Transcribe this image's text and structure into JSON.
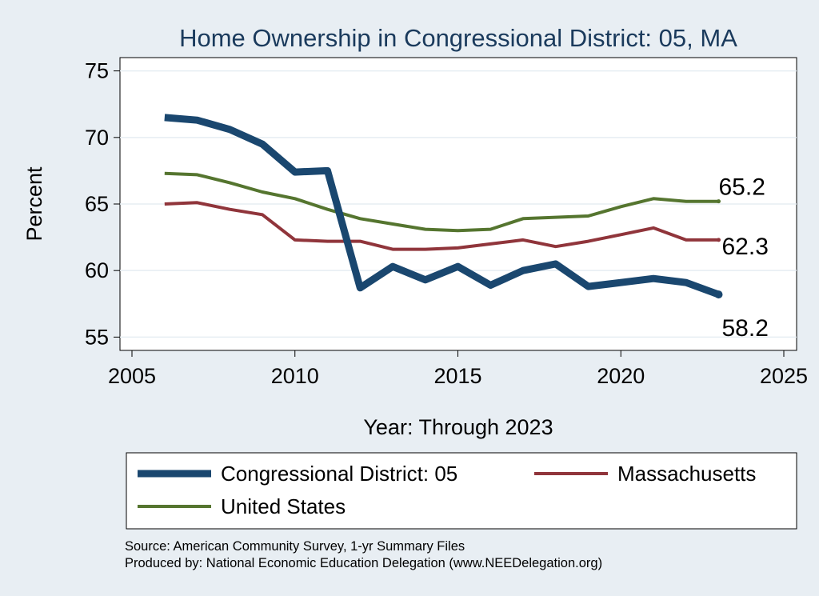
{
  "chart_data": {
    "type": "line",
    "title": "Home Ownership in Congressional District:  05, MA",
    "xlabel": "Year: Through 2023",
    "ylabel": "Percent",
    "xlim": [
      2005,
      2025
    ],
    "ylim": [
      54,
      76
    ],
    "xticks": [
      2005,
      2010,
      2015,
      2020,
      2025
    ],
    "yticks": [
      55,
      60,
      65,
      70,
      75
    ],
    "grid": true,
    "legend": "bottom",
    "series": [
      {
        "name": "Congressional District:  05",
        "color": "#1a476f",
        "x": [
          2006,
          2007,
          2008,
          2009,
          2010,
          2011,
          2012,
          2013,
          2014,
          2015,
          2016,
          2017,
          2018,
          2019,
          2020,
          2021,
          2022,
          2023
        ],
        "values": [
          71.5,
          71.3,
          70.6,
          69.5,
          67.4,
          67.5,
          58.7,
          60.3,
          59.3,
          60.3,
          58.9,
          60.0,
          60.5,
          58.8,
          59.1,
          59.4,
          59.1,
          58.2
        ],
        "end_label": "58.2"
      },
      {
        "name": "Massachusetts",
        "color": "#90353b",
        "x": [
          2006,
          2007,
          2008,
          2009,
          2010,
          2011,
          2012,
          2013,
          2014,
          2015,
          2016,
          2017,
          2018,
          2019,
          2020,
          2021,
          2022,
          2023
        ],
        "values": [
          65.0,
          65.1,
          64.6,
          64.2,
          62.3,
          62.2,
          62.2,
          61.6,
          61.6,
          61.7,
          62.0,
          62.3,
          61.8,
          62.2,
          62.7,
          63.2,
          62.3,
          62.3
        ],
        "end_label": "62.3"
      },
      {
        "name": "United States",
        "color": "#55752f",
        "x": [
          2006,
          2007,
          2008,
          2009,
          2010,
          2011,
          2012,
          2013,
          2014,
          2015,
          2016,
          2017,
          2018,
          2019,
          2020,
          2021,
          2022,
          2023
        ],
        "values": [
          67.3,
          67.2,
          66.6,
          65.9,
          65.4,
          64.6,
          63.9,
          63.5,
          63.1,
          63.0,
          63.1,
          63.9,
          64.0,
          64.1,
          64.8,
          65.4,
          65.2,
          65.2
        ],
        "end_label": "65.2"
      }
    ],
    "notes": [
      "Source: American Community Survey, 1-yr Summary Files",
      "Produced by: National Economic Education Delegation (www.NEEDelegation.org)"
    ]
  }
}
